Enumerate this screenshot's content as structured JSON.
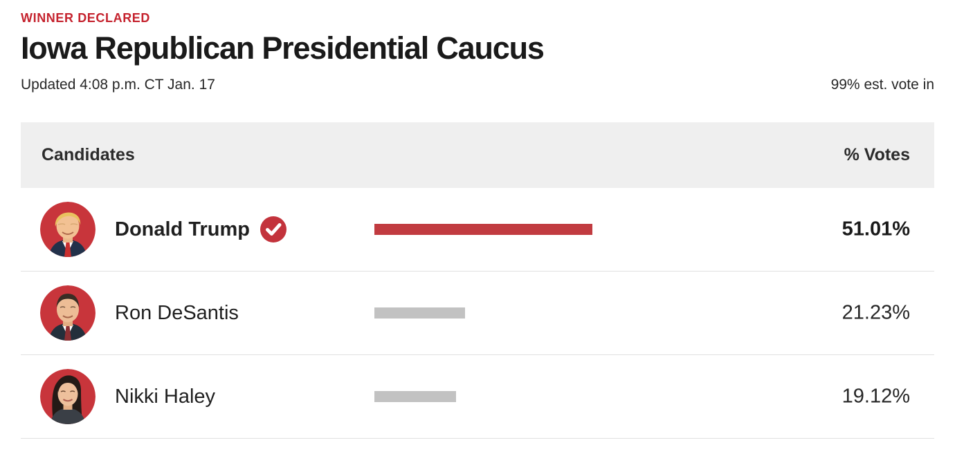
{
  "page": {
    "status_label": "WINNER DECLARED",
    "title": "Iowa Republican Presidential Caucus",
    "updated": "Updated 4:08 p.m. CT Jan. 17",
    "vote_reporting": "99% est. vote in"
  },
  "table": {
    "candidates_header": "Candidates",
    "votes_header": "% Votes"
  },
  "candidates": [
    {
      "name": "Donald Trump",
      "pct_label": "51.01%",
      "value": 51.01,
      "winner": true,
      "avatar_icon": "trump-portrait"
    },
    {
      "name": "Ron DeSantis",
      "pct_label": "21.23%",
      "value": 21.23,
      "winner": false,
      "avatar_icon": "desantis-portrait"
    },
    {
      "name": "Nikki Haley",
      "pct_label": "19.12%",
      "value": 19.12,
      "winner": false,
      "avatar_icon": "haley-portrait"
    }
  ],
  "chart_data": {
    "type": "bar",
    "title": "Iowa Republican Presidential Caucus",
    "categories": [
      "Donald Trump",
      "Ron DeSantis",
      "Nikki Haley"
    ],
    "values": [
      51.01,
      21.23,
      19.12
    ],
    "unit": "%",
    "winner": "Donald Trump",
    "xlim": [
      0,
      100
    ],
    "legend": "none",
    "grid": false
  },
  "icons": {
    "winner_check": "check-icon"
  },
  "colors": {
    "accent_red": "#c5232e",
    "winner_bar": "#c13b40",
    "other_bar": "#c2c2c2",
    "badge_red": "#c3333c",
    "avatar_bg": "#c8353b",
    "header_bg": "#efefef",
    "divider": "#e0e0e0",
    "text_dark": "#1a1a1a"
  }
}
